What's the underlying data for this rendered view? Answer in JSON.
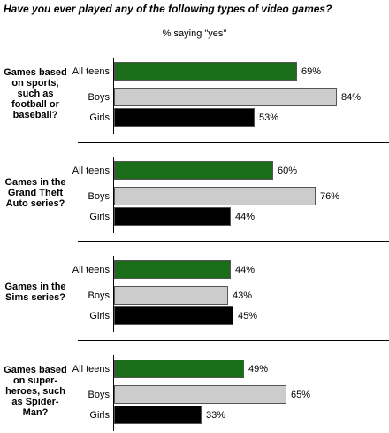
{
  "chart_data": {
    "type": "grouped-hbar",
    "title": "Have you ever played any of the following types of video games?",
    "subtitle": "% saying \"yes\"",
    "categories": [
      "Games based on sports, such as football or baseball?",
      "Games in the Grand Theft Auto series?",
      "Games in the Sims series?",
      "Games based on super-heroes, such as Spider-Man?"
    ],
    "series": [
      {
        "name": "All teens",
        "color": "#1a6e1a",
        "values": [
          69,
          60,
          44,
          49
        ],
        "value_labels": [
          "69%",
          "60%",
          "44%",
          "49%"
        ]
      },
      {
        "name": "Boys",
        "color": "#cccccc",
        "values": [
          84,
          76,
          43,
          65
        ],
        "value_labels": [
          "84%",
          "76%",
          "43%",
          "65%"
        ]
      },
      {
        "name": "Girls",
        "color": "#000000",
        "values": [
          53,
          44,
          45,
          33
        ],
        "value_labels": [
          "53%",
          "44%",
          "45%",
          "33%"
        ]
      }
    ]
  }
}
